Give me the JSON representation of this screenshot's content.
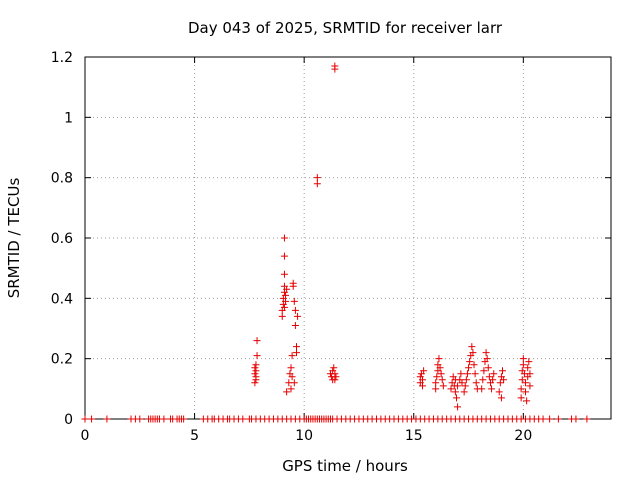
{
  "chart_data": {
    "type": "scatter",
    "title": "Day 043 of 2025, SRMTID for receiver larr",
    "xlabel": "GPS time / hours",
    "ylabel": "SRMTID / TECUs",
    "xlim": [
      0,
      24
    ],
    "ylim": [
      0,
      1.2
    ],
    "xticks": [
      0,
      5,
      10,
      15,
      20
    ],
    "xtick_labels": [
      "0",
      "5",
      "10",
      "15",
      "20"
    ],
    "yticks": [
      0,
      0.2,
      0.4,
      0.6,
      0.8,
      1.0,
      1.2
    ],
    "ytick_labels": [
      "0",
      "0.2",
      "0.4",
      "0.6",
      "0.8",
      "1",
      "1.2"
    ],
    "grid": true,
    "marker": "+",
    "color": "#e60000",
    "series": [
      {
        "name": "SRMTID",
        "points": [
          [
            0.0,
            0
          ],
          [
            0.3,
            0
          ],
          [
            1.0,
            0
          ],
          [
            2.1,
            0
          ],
          [
            2.3,
            0
          ],
          [
            2.5,
            0
          ],
          [
            2.9,
            0
          ],
          [
            3.0,
            0
          ],
          [
            3.1,
            0
          ],
          [
            3.2,
            0
          ],
          [
            3.3,
            0
          ],
          [
            3.4,
            0
          ],
          [
            3.6,
            0
          ],
          [
            3.9,
            0
          ],
          [
            4.0,
            0
          ],
          [
            4.2,
            0
          ],
          [
            4.3,
            0
          ],
          [
            4.4,
            0
          ],
          [
            4.5,
            0
          ],
          [
            5.4,
            0
          ],
          [
            5.6,
            0
          ],
          [
            5.8,
            0
          ],
          [
            5.9,
            0
          ],
          [
            6.1,
            0
          ],
          [
            6.3,
            0
          ],
          [
            6.5,
            0
          ],
          [
            6.6,
            0
          ],
          [
            6.8,
            0
          ],
          [
            7.0,
            0
          ],
          [
            7.2,
            0
          ],
          [
            7.5,
            0
          ],
          [
            7.6,
            0
          ],
          [
            7.8,
            0
          ],
          [
            8.0,
            0
          ],
          [
            8.2,
            0
          ],
          [
            8.4,
            0
          ],
          [
            8.6,
            0
          ],
          [
            8.8,
            0
          ],
          [
            9.0,
            0
          ],
          [
            9.2,
            0
          ],
          [
            9.4,
            0
          ],
          [
            9.6,
            0
          ],
          [
            9.8,
            0
          ],
          [
            10.0,
            0
          ],
          [
            10.1,
            0
          ],
          [
            10.2,
            0
          ],
          [
            10.3,
            0
          ],
          [
            10.4,
            0
          ],
          [
            10.5,
            0
          ],
          [
            10.6,
            0
          ],
          [
            10.7,
            0
          ],
          [
            10.8,
            0
          ],
          [
            10.9,
            0
          ],
          [
            11.0,
            0
          ],
          [
            11.1,
            0
          ],
          [
            11.2,
            0
          ],
          [
            11.3,
            0
          ],
          [
            11.5,
            0
          ],
          [
            11.7,
            0
          ],
          [
            11.9,
            0
          ],
          [
            12.1,
            0
          ],
          [
            12.3,
            0
          ],
          [
            12.5,
            0
          ],
          [
            12.7,
            0
          ],
          [
            12.9,
            0
          ],
          [
            13.1,
            0
          ],
          [
            13.3,
            0
          ],
          [
            13.5,
            0
          ],
          [
            13.7,
            0
          ],
          [
            13.9,
            0
          ],
          [
            14.1,
            0
          ],
          [
            14.3,
            0
          ],
          [
            14.5,
            0
          ],
          [
            14.7,
            0
          ],
          [
            14.9,
            0
          ],
          [
            15.1,
            0
          ],
          [
            15.3,
            0
          ],
          [
            15.5,
            0
          ],
          [
            15.7,
            0
          ],
          [
            15.9,
            0
          ],
          [
            16.1,
            0
          ],
          [
            16.3,
            0
          ],
          [
            16.5,
            0
          ],
          [
            16.7,
            0
          ],
          [
            16.9,
            0
          ],
          [
            17.1,
            0
          ],
          [
            17.3,
            0
          ],
          [
            17.5,
            0
          ],
          [
            17.7,
            0
          ],
          [
            17.9,
            0
          ],
          [
            18.1,
            0
          ],
          [
            18.3,
            0
          ],
          [
            18.5,
            0
          ],
          [
            18.7,
            0
          ],
          [
            18.9,
            0
          ],
          [
            19.1,
            0
          ],
          [
            19.3,
            0
          ],
          [
            19.5,
            0
          ],
          [
            19.7,
            0
          ],
          [
            19.9,
            0
          ],
          [
            20.1,
            0
          ],
          [
            20.3,
            0
          ],
          [
            20.5,
            0
          ],
          [
            20.7,
            0
          ],
          [
            20.9,
            0
          ],
          [
            21.2,
            0
          ],
          [
            21.6,
            0
          ],
          [
            22.2,
            0
          ],
          [
            22.4,
            0
          ],
          [
            22.9,
            0
          ],
          [
            7.75,
            0.17
          ],
          [
            7.75,
            0.15
          ],
          [
            7.75,
            0.12
          ],
          [
            7.8,
            0.18
          ],
          [
            7.8,
            0.14
          ],
          [
            7.8,
            0.13
          ],
          [
            7.85,
            0.21
          ],
          [
            7.85,
            0.26
          ],
          [
            7.8,
            0.16
          ],
          [
            9.0,
            0.34
          ],
          [
            9.0,
            0.36
          ],
          [
            9.05,
            0.38
          ],
          [
            9.05,
            0.4
          ],
          [
            9.1,
            0.42
          ],
          [
            9.1,
            0.37
          ],
          [
            9.1,
            0.44
          ],
          [
            9.1,
            0.48
          ],
          [
            9.1,
            0.54
          ],
          [
            9.1,
            0.6
          ],
          [
            9.15,
            0.39
          ],
          [
            9.15,
            0.41
          ],
          [
            9.2,
            0.43
          ],
          [
            9.2,
            0.09
          ],
          [
            9.3,
            0.12
          ],
          [
            9.35,
            0.15
          ],
          [
            9.4,
            0.17
          ],
          [
            9.4,
            0.1
          ],
          [
            9.45,
            0.21
          ],
          [
            9.45,
            0.14
          ],
          [
            9.5,
            0.44
          ],
          [
            9.5,
            0.45
          ],
          [
            9.55,
            0.12
          ],
          [
            9.55,
            0.39
          ],
          [
            9.6,
            0.36
          ],
          [
            9.6,
            0.31
          ],
          [
            9.65,
            0.22
          ],
          [
            9.65,
            0.24
          ],
          [
            9.7,
            0.34
          ],
          [
            10.6,
            0.8
          ],
          [
            10.6,
            0.78
          ],
          [
            11.4,
            1.17
          ],
          [
            11.4,
            1.16
          ],
          [
            11.2,
            0.15
          ],
          [
            11.25,
            0.14
          ],
          [
            11.3,
            0.16
          ],
          [
            11.3,
            0.13
          ],
          [
            11.35,
            0.17
          ],
          [
            11.4,
            0.15
          ],
          [
            11.4,
            0.13
          ],
          [
            11.45,
            0.14
          ],
          [
            15.3,
            0.14
          ],
          [
            15.3,
            0.12
          ],
          [
            15.35,
            0.15
          ],
          [
            15.4,
            0.11
          ],
          [
            15.4,
            0.13
          ],
          [
            15.45,
            0.16
          ],
          [
            16.0,
            0.1
          ],
          [
            16.0,
            0.12
          ],
          [
            16.05,
            0.14
          ],
          [
            16.1,
            0.16
          ],
          [
            16.1,
            0.18
          ],
          [
            16.15,
            0.2
          ],
          [
            16.2,
            0.17
          ],
          [
            16.25,
            0.15
          ],
          [
            16.3,
            0.13
          ],
          [
            16.35,
            0.11
          ],
          [
            16.7,
            0.1
          ],
          [
            16.75,
            0.12
          ],
          [
            16.8,
            0.14
          ],
          [
            16.85,
            0.11
          ],
          [
            16.9,
            0.13
          ],
          [
            16.9,
            0.09
          ],
          [
            16.95,
            0.07
          ],
          [
            17.0,
            0.04
          ],
          [
            17.0,
            0.11
          ],
          [
            17.1,
            0.13
          ],
          [
            17.15,
            0.15
          ],
          [
            17.2,
            0.12
          ],
          [
            17.3,
            0.09
          ],
          [
            17.35,
            0.11
          ],
          [
            17.4,
            0.13
          ],
          [
            17.45,
            0.15
          ],
          [
            17.5,
            0.17
          ],
          [
            17.55,
            0.19
          ],
          [
            17.6,
            0.21
          ],
          [
            17.65,
            0.24
          ],
          [
            17.7,
            0.22
          ],
          [
            17.75,
            0.18
          ],
          [
            17.8,
            0.15
          ],
          [
            17.85,
            0.12
          ],
          [
            17.9,
            0.1
          ],
          [
            18.1,
            0.1
          ],
          [
            18.15,
            0.13
          ],
          [
            18.2,
            0.16
          ],
          [
            18.25,
            0.19
          ],
          [
            18.3,
            0.22
          ],
          [
            18.35,
            0.2
          ],
          [
            18.4,
            0.17
          ],
          [
            18.45,
            0.14
          ],
          [
            18.5,
            0.12
          ],
          [
            18.55,
            0.1
          ],
          [
            18.6,
            0.13
          ],
          [
            18.65,
            0.15
          ],
          [
            18.9,
            0.09
          ],
          [
            18.95,
            0.12
          ],
          [
            19.0,
            0.14
          ],
          [
            19.0,
            0.07
          ],
          [
            19.05,
            0.16
          ],
          [
            19.1,
            0.13
          ],
          [
            19.9,
            0.07
          ],
          [
            19.9,
            0.1
          ],
          [
            19.95,
            0.13
          ],
          [
            19.95,
            0.16
          ],
          [
            20.0,
            0.2
          ],
          [
            20.0,
            0.18
          ],
          [
            20.05,
            0.15
          ],
          [
            20.1,
            0.12
          ],
          [
            20.1,
            0.09
          ],
          [
            20.15,
            0.06
          ],
          [
            20.2,
            0.17
          ],
          [
            20.2,
            0.14
          ],
          [
            20.25,
            0.19
          ],
          [
            20.3,
            0.11
          ],
          [
            20.3,
            0.15
          ]
        ]
      }
    ]
  }
}
